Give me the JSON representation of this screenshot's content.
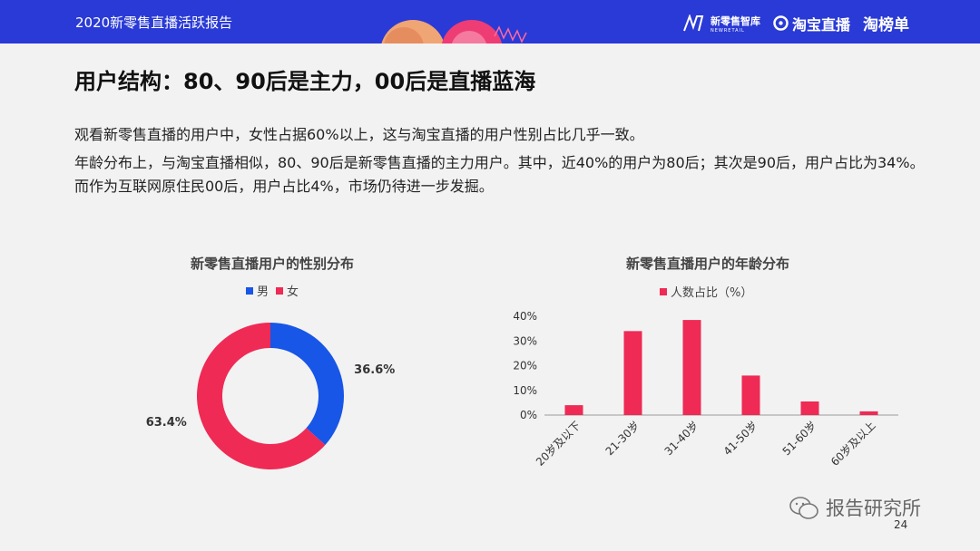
{
  "header": {
    "report_title": "2020新零售直播活跃报告",
    "brand1_main": "新零售智库",
    "brand1_sub": "NEWRETAIL",
    "brand2": "淘宝直播",
    "brand3": "淘榜单",
    "bg_color": "#2a3ad6"
  },
  "heading": "用户结构：80、90后是主力，00后是直播蓝海",
  "paragraphs": [
    "观看新零售直播的用户中，女性占据60%以上，这与淘宝直播的用户性别占比几乎一致。",
    "年龄分布上，与淘宝直播相似，80、90后是新零售直播的主力用户。其中，近40%的用户为80后；其次是90后，用户占比为34%。而作为互联网原住民00后，用户占比4%，市场仍待进一步发掘。"
  ],
  "chart_data": [
    {
      "type": "pie",
      "title": "新零售直播用户的性别分布",
      "legend_position": "top",
      "labels": [
        "男",
        "女"
      ],
      "values": [
        36.6,
        63.4
      ],
      "value_labels": [
        "36.6%",
        "63.4%"
      ],
      "colors": [
        "#1756e6",
        "#ef2a55"
      ]
    },
    {
      "type": "bar",
      "title": "新零售直播用户的年龄分布",
      "legend_position": "top",
      "series": [
        {
          "name": "人数占比（%）",
          "values": [
            4,
            34,
            38.5,
            16,
            5.5,
            1.5
          ],
          "color": "#ef2a55"
        }
      ],
      "categories": [
        "20岁及以下",
        "21-30岁",
        "31-40岁",
        "41-50岁",
        "51-60岁",
        "60岁及以上"
      ],
      "ylim": [
        0,
        40
      ],
      "yticks": [
        "0%",
        "10%",
        "20%",
        "30%",
        "40%"
      ],
      "grid": false
    }
  ],
  "footer": {
    "watermark": "报告研究所",
    "page_number": "24"
  }
}
